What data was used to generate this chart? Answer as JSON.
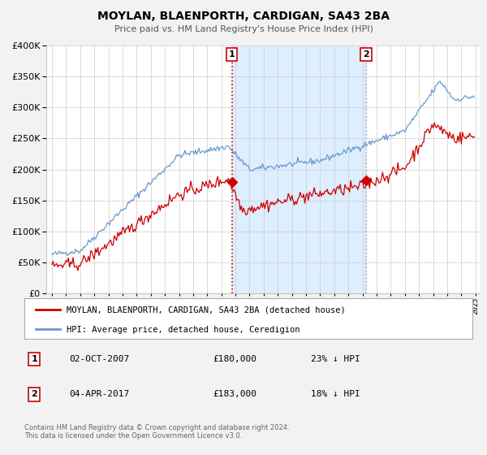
{
  "title": "MOYLAN, BLAENPORTH, CARDIGAN, SA43 2BA",
  "subtitle": "Price paid vs. HM Land Registry's House Price Index (HPI)",
  "legend_line1": "MOYLAN, BLAENPORTH, CARDIGAN, SA43 2BA (detached house)",
  "legend_line2": "HPI: Average price, detached house, Ceredigion",
  "annotation1_date": "02-OCT-2007",
  "annotation1_price": "£180,000",
  "annotation1_hpi": "23% ↓ HPI",
  "annotation2_date": "04-APR-2017",
  "annotation2_price": "£183,000",
  "annotation2_hpi": "18% ↓ HPI",
  "vline1_x": 2007.75,
  "vline2_x": 2017.25,
  "sale1_x": 2007.75,
  "sale1_y": 180000,
  "sale2_x": 2017.25,
  "sale2_y": 183000,
  "red_color": "#cc0000",
  "blue_color": "#6699cc",
  "shade_color": "#ddeeff",
  "background_color": "#f2f2f2",
  "plot_bg_color": "#ffffff",
  "footer": "Contains HM Land Registry data © Crown copyright and database right 2024.\nThis data is licensed under the Open Government Licence v3.0.",
  "ylim": [
    0,
    400000
  ],
  "yticks": [
    0,
    50000,
    100000,
    150000,
    200000,
    250000,
    300000,
    350000,
    400000
  ],
  "xlim_start": 1994.6,
  "xlim_end": 2025.3
}
